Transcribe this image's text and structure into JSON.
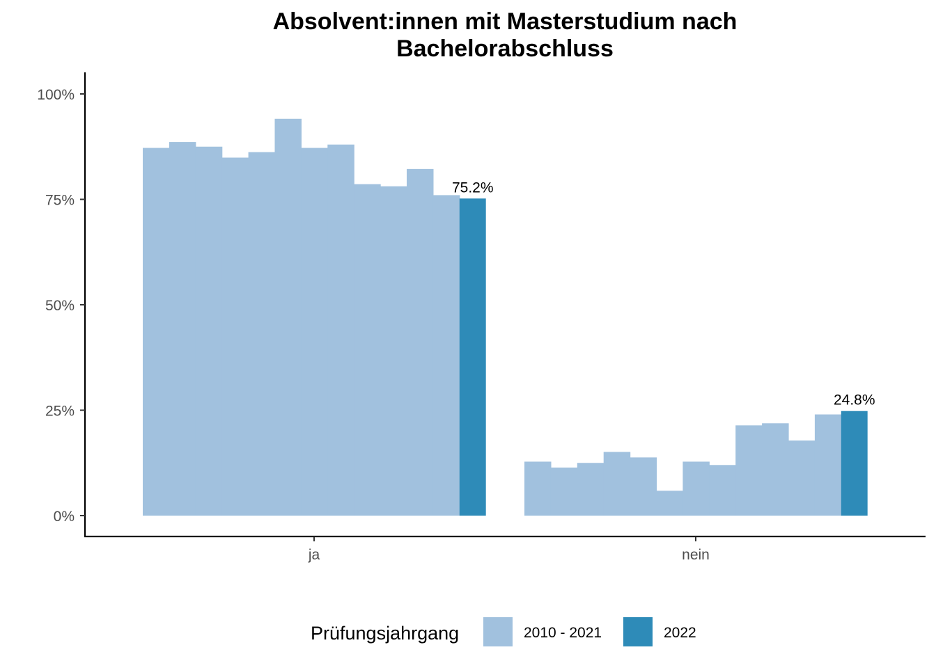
{
  "chart_data": {
    "type": "bar",
    "title_lines": [
      "Absolvent:innen mit Masterstudium nach",
      "Bachelorabschluss"
    ],
    "xlabel": "",
    "ylabel": "",
    "categories": [
      "ja",
      "nein"
    ],
    "ylim": [
      0,
      1.05
    ],
    "yticks": [
      0,
      0.25,
      0.5,
      0.75,
      1.0
    ],
    "ytick_labels": [
      "0%",
      "25%",
      "50%",
      "75%",
      "100%"
    ],
    "grid": false,
    "legend": {
      "title": "Prüfungsjahrgang",
      "position": "bottom",
      "entries": [
        {
          "label": "2010 - 2021",
          "color": "#a1c1de"
        },
        {
          "label": "2022",
          "color": "#2e8bb8"
        }
      ]
    },
    "series": [
      {
        "name": "2010 - 2021",
        "color": "#a1c1de",
        "years": [
          "2010",
          "2011",
          "2012",
          "2013",
          "2014",
          "2015",
          "2016",
          "2017",
          "2018",
          "2019",
          "2020",
          "2021"
        ],
        "values": {
          "ja": [
            0.872,
            0.886,
            0.875,
            0.849,
            0.862,
            0.941,
            0.872,
            0.88,
            0.786,
            0.781,
            0.822,
            0.76
          ],
          "nein": [
            0.128,
            0.114,
            0.125,
            0.151,
            0.138,
            0.059,
            0.128,
            0.12,
            0.214,
            0.219,
            0.178,
            0.24
          ]
        }
      },
      {
        "name": "2022",
        "color": "#2e8bb8",
        "values": {
          "ja": 0.752,
          "nein": 0.248
        },
        "data_labels": {
          "ja": "75.2%",
          "nein": "24.8%"
        }
      }
    ]
  }
}
